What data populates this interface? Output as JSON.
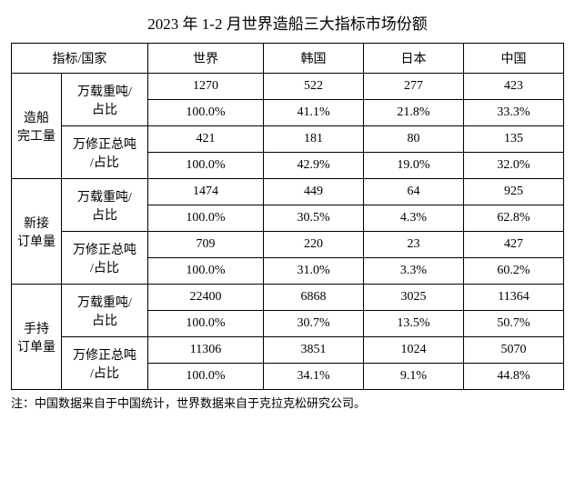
{
  "title": "2023 年 1-2 月世界造船三大指标市场份额",
  "headers": {
    "h0": "指标/国家",
    "h1": "世界",
    "h2": "韩国",
    "h3": "日本",
    "h4": "中国"
  },
  "rowGroups": [
    {
      "label": "造船\n完工量",
      "subs": [
        {
          "label": "万载重吨/\n占比",
          "r1": [
            "1270",
            "522",
            "277",
            "423"
          ],
          "r2": [
            "100.0%",
            "41.1%",
            "21.8%",
            "33.3%"
          ]
        },
        {
          "label": "万修正总吨\n/占比",
          "r1": [
            "421",
            "181",
            "80",
            "135"
          ],
          "r2": [
            "100.0%",
            "42.9%",
            "19.0%",
            "32.0%"
          ]
        }
      ]
    },
    {
      "label": "新接\n订单量",
      "subs": [
        {
          "label": "万载重吨/\n占比",
          "r1": [
            "1474",
            "449",
            "64",
            "925"
          ],
          "r2": [
            "100.0%",
            "30.5%",
            "4.3%",
            "62.8%"
          ]
        },
        {
          "label": "万修正总吨\n/占比",
          "r1": [
            "709",
            "220",
            "23",
            "427"
          ],
          "r2": [
            "100.0%",
            "31.0%",
            "3.3%",
            "60.2%"
          ]
        }
      ]
    },
    {
      "label": "手持\n订单量",
      "subs": [
        {
          "label": "万载重吨/\n占比",
          "r1": [
            "22400",
            "6868",
            "3025",
            "11364"
          ],
          "r2": [
            "100.0%",
            "30.7%",
            "13.5%",
            "50.7%"
          ]
        },
        {
          "label": "万修正总吨\n/占比",
          "r1": [
            "11306",
            "3851",
            "1024",
            "5070"
          ],
          "r2": [
            "100.0%",
            "34.1%",
            "9.1%",
            "44.8%"
          ]
        }
      ]
    }
  ],
  "note": "注：中国数据来自于中国统计，世界数据来自于克拉克松研究公司。",
  "styling": {
    "border_color": "#000000",
    "background_color": "#ffffff",
    "text_color": "#000000",
    "title_fontsize": 17,
    "cell_fontsize": 14,
    "note_fontsize": 13,
    "font_family": "SimSun"
  }
}
